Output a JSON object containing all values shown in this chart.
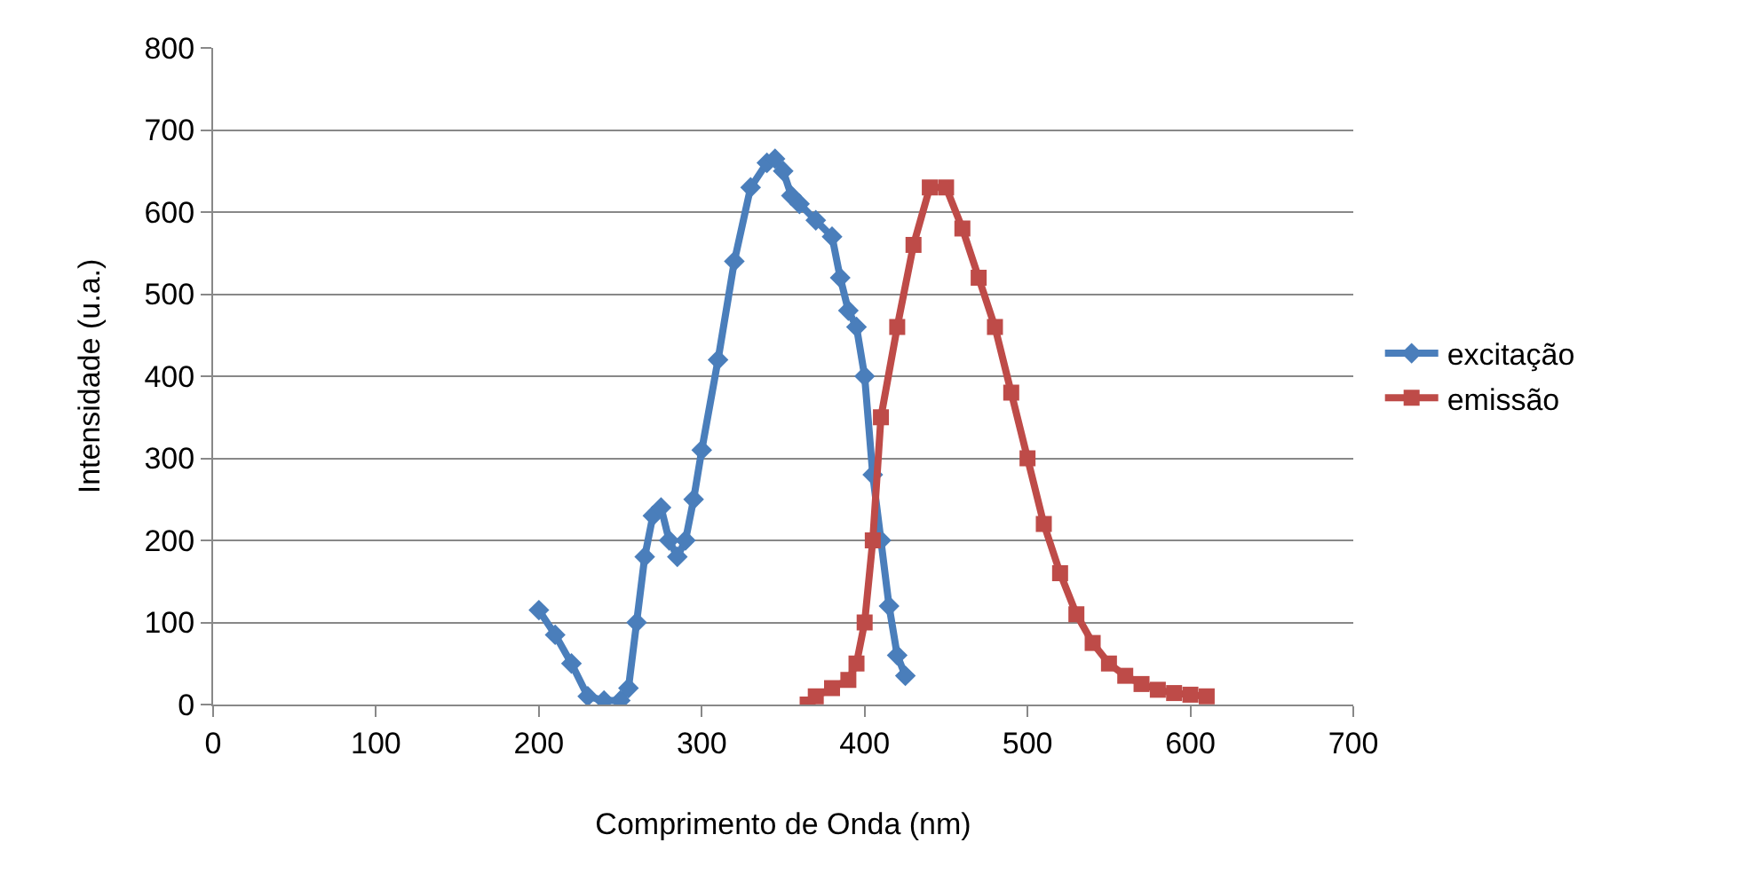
{
  "chart_data": {
    "type": "line",
    "xlabel": "Comprimento de Onda (nm)",
    "ylabel": "Intensidade (u.a.)",
    "xlim": [
      0,
      700
    ],
    "xticks": [
      0,
      100,
      200,
      300,
      400,
      500,
      600,
      700
    ],
    "ylim": [
      0,
      800
    ],
    "yticks": [
      0,
      100,
      200,
      300,
      400,
      500,
      600,
      700,
      800
    ],
    "grid": "y",
    "legend": "right",
    "series": [
      {
        "name": "excitação",
        "color": "#4a7ebb",
        "marker": "diamond",
        "x": [
          200,
          210,
          220,
          230,
          240,
          250,
          255,
          260,
          265,
          270,
          275,
          280,
          285,
          290,
          295,
          300,
          310,
          320,
          330,
          340,
          345,
          350,
          355,
          360,
          370,
          380,
          385,
          390,
          395,
          400,
          405,
          410,
          415,
          420,
          425
        ],
        "values": [
          115,
          85,
          50,
          10,
          5,
          5,
          20,
          100,
          180,
          230,
          240,
          200,
          180,
          200,
          250,
          310,
          420,
          540,
          630,
          660,
          665,
          650,
          620,
          610,
          590,
          570,
          520,
          480,
          460,
          400,
          280,
          200,
          120,
          60,
          35
        ]
      },
      {
        "name": "emissão",
        "color": "#be4b48",
        "marker": "square",
        "x": [
          365,
          370,
          380,
          390,
          395,
          400,
          405,
          410,
          420,
          430,
          440,
          450,
          460,
          470,
          480,
          490,
          500,
          510,
          520,
          530,
          540,
          550,
          560,
          570,
          580,
          590,
          600,
          610
        ],
        "values": [
          0,
          10,
          20,
          30,
          50,
          100,
          200,
          350,
          460,
          560,
          630,
          630,
          580,
          520,
          460,
          380,
          300,
          220,
          160,
          110,
          75,
          50,
          35,
          25,
          18,
          14,
          12,
          10
        ]
      }
    ]
  }
}
